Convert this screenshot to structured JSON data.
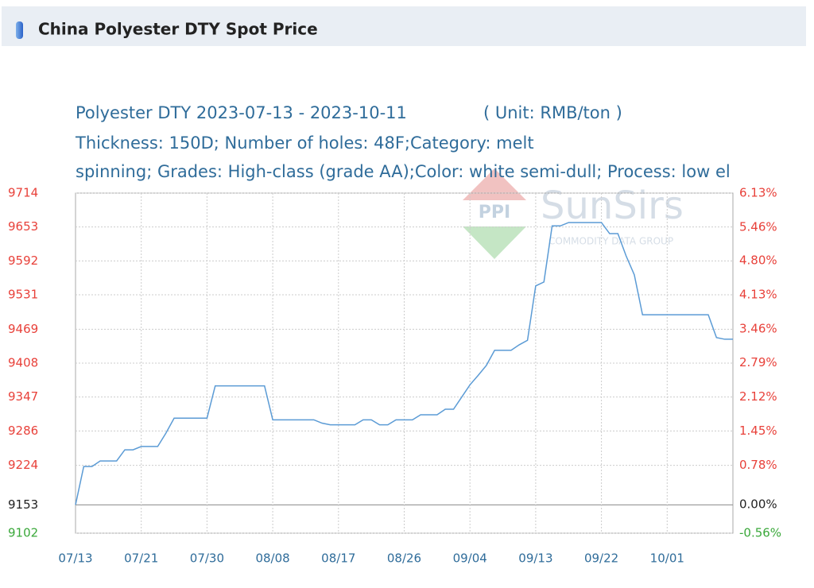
{
  "header": {
    "title": "China Polyester DTY Spot Price"
  },
  "watermark": {
    "mark": "PPI",
    "brand": "SunSirs",
    "tagline": "COMMODITY DATA GROUP"
  },
  "chart_data": {
    "type": "line",
    "title": "Polyester DTY 2023-07-13 - 2023-10-11",
    "unit": "( Unit: RMB/ton )",
    "subtitle": [
      "Thickness: 150D; Number of holes: 48F;Category: melt",
      "spinning; Grades: High-class (grade AA);Color: white semi-dull; Process: low el"
    ],
    "x": [
      0,
      1,
      2,
      3,
      4,
      5,
      6,
      7,
      8,
      9,
      10,
      11,
      12,
      13,
      14,
      15,
      16,
      17,
      18,
      19,
      20,
      21,
      22,
      23,
      24,
      25,
      26,
      27,
      28,
      29,
      30,
      31,
      32,
      33,
      34,
      35,
      36,
      37,
      38,
      39,
      40,
      41,
      42,
      43,
      44,
      45,
      46,
      47,
      48,
      49,
      50,
      51,
      52,
      53,
      54,
      55,
      56,
      57,
      58,
      59,
      60,
      61,
      62,
      63,
      64,
      65,
      66,
      67,
      68,
      69,
      70,
      71,
      72,
      73,
      74,
      75,
      76,
      77,
      78,
      79,
      80
    ],
    "series": [
      {
        "name": "Polyester DTY",
        "color": "#5b9bd5",
        "values": [
          9153,
          9222,
          9222,
          9232,
          9232,
          9232,
          9252,
          9252,
          9258,
          9258,
          9258,
          9282,
          9309,
          9309,
          9309,
          9309,
          9309,
          9367,
          9367,
          9367,
          9367,
          9367,
          9367,
          9367,
          9306,
          9306,
          9306,
          9306,
          9306,
          9306,
          9300,
          9297,
          9297,
          9297,
          9297,
          9306,
          9306,
          9297,
          9297,
          9306,
          9306,
          9306,
          9315,
          9315,
          9315,
          9325,
          9325,
          9347,
          9369,
          9386,
          9404,
          9431,
          9431,
          9431,
          9441,
          9449,
          9547,
          9554,
          9655,
          9655,
          9661,
          9661,
          9661,
          9661,
          9661,
          9641,
          9641,
          9601,
          9567,
          9495,
          9495,
          9495,
          9495,
          9495,
          9495,
          9495,
          9495,
          9495,
          9454,
          9451,
          9451
        ]
      }
    ],
    "xlim": [
      0,
      80
    ],
    "xticks": [
      {
        "value": 0,
        "label": "07/13"
      },
      {
        "value": 8,
        "label": "07/21"
      },
      {
        "value": 16,
        "label": "07/30"
      },
      {
        "value": 24,
        "label": "08/08"
      },
      {
        "value": 32,
        "label": "08/17"
      },
      {
        "value": 40,
        "label": "08/26"
      },
      {
        "value": 48,
        "label": "09/04"
      },
      {
        "value": 56,
        "label": "09/13"
      },
      {
        "value": 64,
        "label": "09/22"
      },
      {
        "value": 72,
        "label": "10/01"
      }
    ],
    "ylim": [
      9102,
      9714
    ],
    "yticks": [
      9102,
      9153,
      9224,
      9286,
      9347,
      9408,
      9469,
      9531,
      9592,
      9653,
      9714
    ],
    "baseline": 9153,
    "y2lim": [
      -0.56,
      6.13
    ],
    "y2ticks": [
      {
        "value": -0.56,
        "label": "-0.56%"
      },
      {
        "value": 0,
        "label": "0.00%"
      },
      {
        "value": 0.78,
        "label": "0.78%"
      },
      {
        "value": 1.45,
        "label": "1.45%"
      },
      {
        "value": 2.12,
        "label": "2.12%"
      },
      {
        "value": 2.79,
        "label": "2.79%"
      },
      {
        "value": 3.46,
        "label": "3.46%"
      },
      {
        "value": 4.13,
        "label": "4.13%"
      },
      {
        "value": 4.8,
        "label": "4.80%"
      },
      {
        "value": 5.46,
        "label": "5.46%"
      },
      {
        "value": 6.13,
        "label": "6.13%"
      }
    ],
    "grid": true,
    "up_color": "#e8413a",
    "down_color": "#3aa83a",
    "base_color": "#222222"
  }
}
